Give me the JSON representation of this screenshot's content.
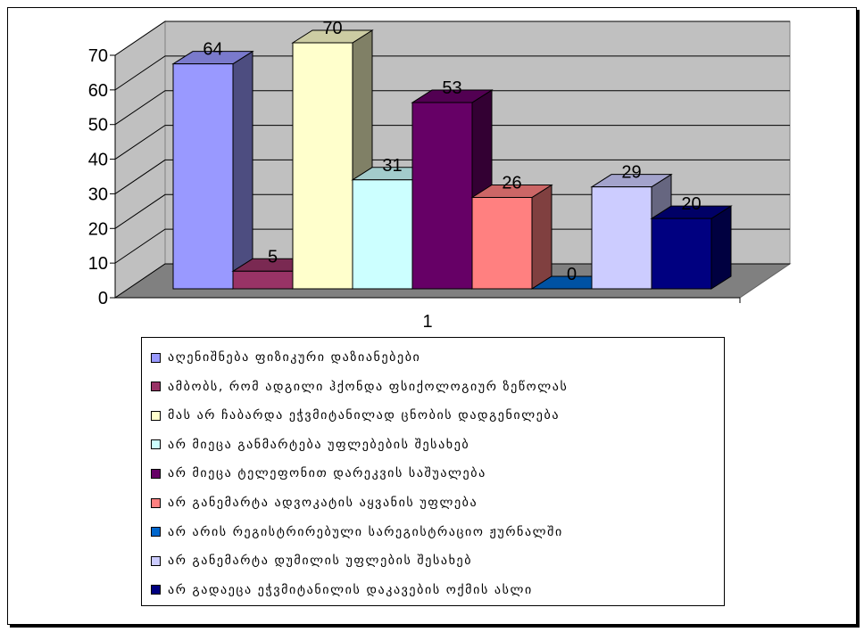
{
  "chart_data": {
    "type": "bar",
    "style": "3d-clustered-column",
    "categories": [
      "1"
    ],
    "ylim": [
      0,
      70
    ],
    "yticks": [
      "0",
      "10",
      "20",
      "30",
      "40",
      "50",
      "60",
      "70"
    ],
    "grid": true,
    "legend_position": "bottom",
    "series": [
      {
        "name": "აღენიშნება ფიზიკური დაზიანებები",
        "values": [
          64
        ],
        "color": "#9999ff"
      },
      {
        "name": "ამბობს, რომ ადგილი ჰქონდა ფსიქოლოგიურ ზეწოლას",
        "values": [
          5
        ],
        "color": "#993366"
      },
      {
        "name": "მას არ ჩაბარდა ეჭვმიტანილად ცნობის დადგენილება",
        "values": [
          70
        ],
        "color": "#ffffcc"
      },
      {
        "name": "არ მიეცა განმარტება უფლებების შესახებ",
        "values": [
          31
        ],
        "color": "#ccffff"
      },
      {
        "name": "არ მიეცა ტელეფონით დარეკვის საშუალება",
        "values": [
          53
        ],
        "color": "#660066"
      },
      {
        "name": "არ განემარტა ადვოკატის აყვანის უფლება",
        "values": [
          26
        ],
        "color": "#ff8080"
      },
      {
        "name": "არ არის რეგისტრირებული სარეგისტრაციო ჟურნალში",
        "values": [
          0
        ],
        "color": "#0066cc"
      },
      {
        "name": "არ განემარტა დუმილის უფლების შესახებ",
        "values": [
          29
        ],
        "color": "#ccccff"
      },
      {
        "name": "არ გადაეცა ეჭვმიტანილის დაკავების ოქმის ასლი",
        "values": [
          20
        ],
        "color": "#000080"
      }
    ]
  }
}
